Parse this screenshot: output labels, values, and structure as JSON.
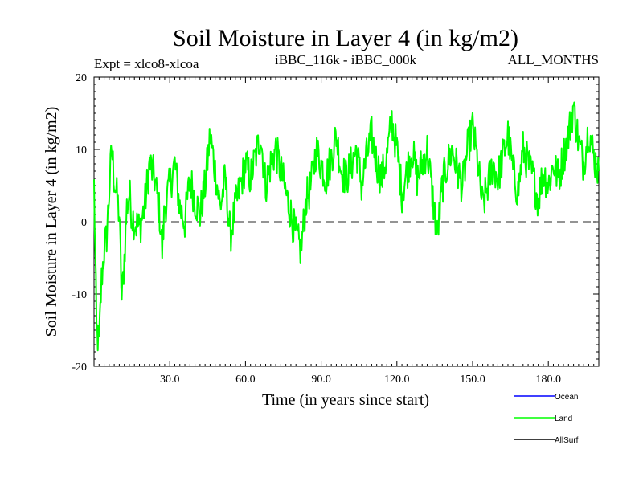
{
  "chart_data": {
    "type": "line",
    "title": "Soil Moisture in Layer 4 (in kg/m2)",
    "subtitle_left": "Expt = xlco8-xlcoa",
    "subtitle_center": "iBBC_116k - iBBC_000k",
    "subtitle_right": "ALL_MONTHS",
    "xlabel": "Time (in years since start)",
    "ylabel": "Soil Moisture in Layer 4 (in kg/m2)",
    "xlim": [
      0,
      200
    ],
    "ylim": [
      -20,
      20
    ],
    "xticks": [
      30,
      60,
      90,
      120,
      150,
      180
    ],
    "xtick_labels": [
      "30.0",
      "60.0",
      "90.0",
      "120.0",
      "150.0",
      "180.0"
    ],
    "yticks": [
      -20,
      -10,
      0,
      10,
      20
    ],
    "ytick_labels": [
      "-20",
      "-10",
      "0",
      "10",
      "20"
    ],
    "zero_line": "dashed",
    "grid": false,
    "legend_position": "bottom-right",
    "series": [
      {
        "name": "Ocean",
        "color": "#0000ff",
        "x": [],
        "values": []
      },
      {
        "name": "Land",
        "color": "#00ff00",
        "x": [
          0,
          1,
          2,
          3,
          4,
          5,
          6,
          7,
          8,
          10,
          11,
          12,
          13,
          14,
          15,
          16,
          18,
          20,
          22,
          24,
          26,
          27,
          28,
          30,
          32,
          34,
          36,
          38,
          40,
          42,
          44,
          46,
          48,
          50,
          52,
          54,
          56,
          58,
          60,
          62,
          64,
          66,
          68,
          70,
          72,
          74,
          76,
          78,
          80,
          82,
          84,
          86,
          88,
          90,
          92,
          94,
          96,
          98,
          100,
          102,
          104,
          106,
          108,
          110,
          112,
          114,
          116,
          118,
          120,
          122,
          124,
          126,
          128,
          130,
          132,
          134,
          136,
          138,
          140,
          142,
          144,
          146,
          148,
          150,
          152,
          154,
          156,
          158,
          160,
          162,
          164,
          166,
          168,
          170,
          172,
          174,
          176,
          178,
          180,
          182,
          184,
          186,
          188,
          190,
          192,
          194,
          196,
          198,
          200
        ],
        "values": [
          5,
          -15,
          -17,
          -8,
          -4,
          -2,
          4,
          10,
          6,
          1,
          -11,
          -5,
          2,
          4,
          1,
          0,
          -1,
          2,
          8,
          6,
          1,
          -4,
          2,
          5,
          8,
          2,
          0,
          6,
          3,
          1,
          5,
          12,
          7,
          2,
          6,
          -2,
          2,
          5,
          8,
          6,
          9,
          12,
          5,
          8,
          10,
          7,
          4,
          1,
          -2,
          -4,
          3,
          5,
          10,
          8,
          6,
          9,
          12,
          7,
          6,
          8,
          10,
          5,
          9,
          12,
          8,
          6,
          9,
          14,
          10,
          4,
          7,
          10,
          6,
          8,
          10,
          4,
          -2,
          5,
          8,
          10,
          7,
          5,
          10,
          13,
          8,
          2,
          5,
          8,
          6,
          9,
          12,
          7,
          4,
          10,
          8,
          6,
          3,
          7,
          5,
          8,
          6,
          9,
          12,
          16,
          11,
          8,
          13,
          9,
          7
        ]
      },
      {
        "name": "AllSurf",
        "color": "#000000",
        "x": [],
        "values": []
      }
    ]
  }
}
